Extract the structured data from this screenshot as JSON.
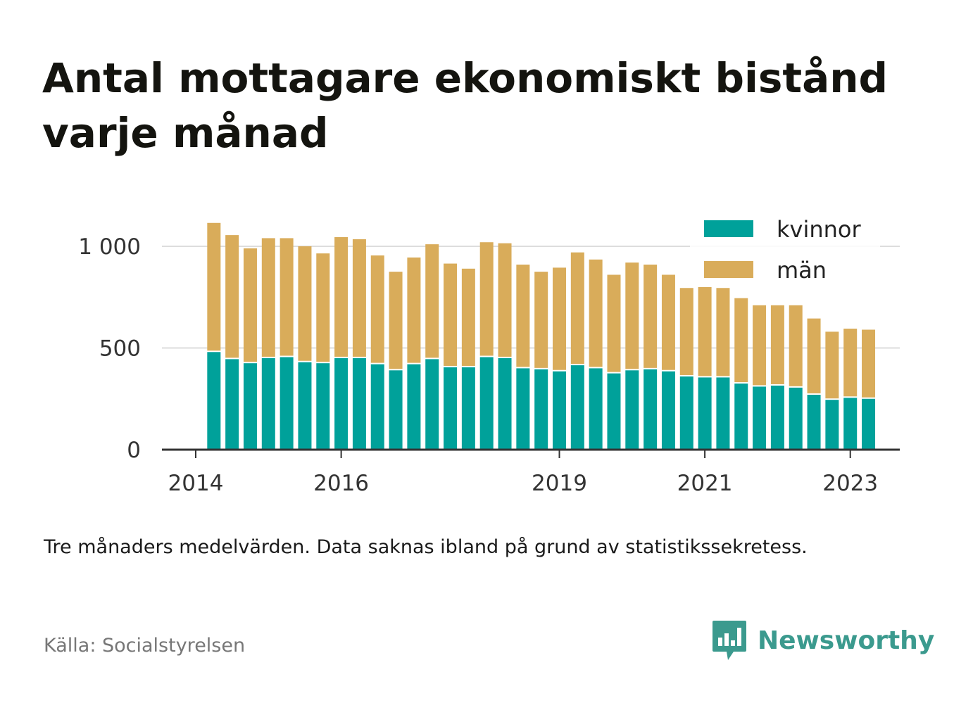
{
  "title": "Antal mottagare ekonomiskt bistånd varje månad",
  "note": "Tre månaders medelvärden. Data saknas ibland på grund av statistikssekretess.",
  "source": "Källa: Socialstyrelsen",
  "brand": {
    "name": "Newsworthy",
    "icon": "bar-chart-speech-bubble-icon"
  },
  "colors": {
    "kvinnor": "#00a19a",
    "man": "#d9ac5a",
    "grid": "#dddddd",
    "axis": "#333333",
    "brand": "#3b9a8e"
  },
  "chart_data": {
    "type": "bar",
    "stacked": true,
    "periods": [
      "2014-Q1",
      "2014-Q2",
      "2014-Q3",
      "2014-Q4",
      "2015-Q1",
      "2015-Q2",
      "2015-Q3",
      "2015-Q4",
      "2016-Q1",
      "2016-Q2",
      "2016-Q3",
      "2016-Q4",
      "2017-Q1",
      "2017-Q2",
      "2017-Q3",
      "2017-Q4",
      "2018-Q1",
      "2018-Q2",
      "2018-Q3",
      "2018-Q4",
      "2019-Q1",
      "2019-Q2",
      "2019-Q3",
      "2019-Q4",
      "2020-Q1",
      "2020-Q2",
      "2020-Q3",
      "2020-Q4",
      "2021-Q1",
      "2021-Q2",
      "2021-Q3",
      "2021-Q4",
      "2022-Q1",
      "2022-Q2",
      "2022-Q3",
      "2022-Q4",
      "2023-Q1"
    ],
    "series": [
      {
        "name": "kvinnor",
        "values": [
          480,
          445,
          425,
          450,
          455,
          430,
          425,
          450,
          450,
          420,
          390,
          420,
          445,
          405,
          405,
          455,
          450,
          400,
          395,
          385,
          415,
          400,
          375,
          390,
          395,
          385,
          360,
          355,
          355,
          325,
          310,
          315,
          305,
          270,
          245,
          255,
          250
        ]
      },
      {
        "name": "män",
        "values": [
          635,
          610,
          565,
          590,
          585,
          570,
          540,
          595,
          585,
          535,
          485,
          525,
          565,
          510,
          485,
          565,
          565,
          510,
          480,
          510,
          555,
          535,
          485,
          530,
          515,
          475,
          435,
          445,
          440,
          420,
          400,
          395,
          405,
          375,
          335,
          340,
          340
        ]
      }
    ],
    "x_ticks": [
      "2014",
      "2016",
      "2019",
      "2021",
      "2023"
    ],
    "y_ticks": [
      0,
      500,
      1000
    ],
    "y_tick_labels": [
      "0",
      "500",
      "1 000"
    ],
    "ylim": [
      0,
      1150
    ],
    "grid": true,
    "legend": {
      "placement": "top-right",
      "entries": [
        "kvinnor",
        "män"
      ]
    }
  }
}
